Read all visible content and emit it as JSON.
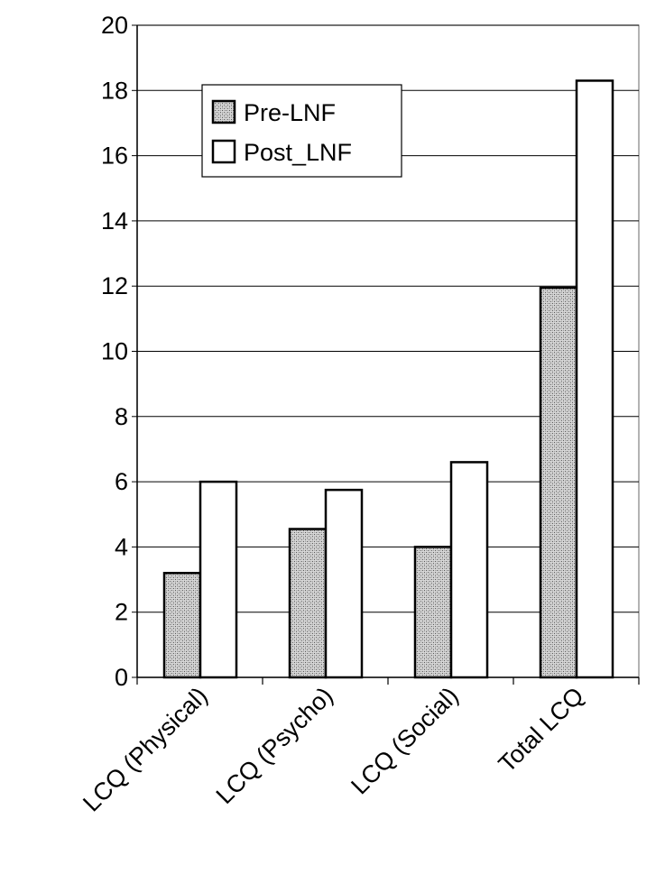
{
  "chart_data": {
    "type": "bar",
    "title": "",
    "xlabel": "",
    "ylabel": "",
    "categories": [
      "LCQ (Physical)",
      "LCQ (Psycho)",
      "LCQ (Social)",
      "Total LCQ"
    ],
    "series": [
      {
        "name": "Pre-LNF",
        "values": [
          3.2,
          4.55,
          4.0,
          11.95
        ],
        "fill": "pattern-dots"
      },
      {
        "name": "Post_LNF",
        "values": [
          6.0,
          5.75,
          6.6,
          18.3
        ],
        "fill": "#ffffff"
      }
    ],
    "ylim": [
      0,
      20
    ],
    "yticks": [
      0,
      2,
      4,
      6,
      8,
      10,
      12,
      14,
      16,
      18,
      20
    ],
    "ytick_labels": [
      "0",
      "2",
      "4",
      "6",
      "8",
      "10",
      "12",
      "14",
      "16",
      "18",
      "20"
    ],
    "grid": true,
    "legend_position": "top-left"
  }
}
